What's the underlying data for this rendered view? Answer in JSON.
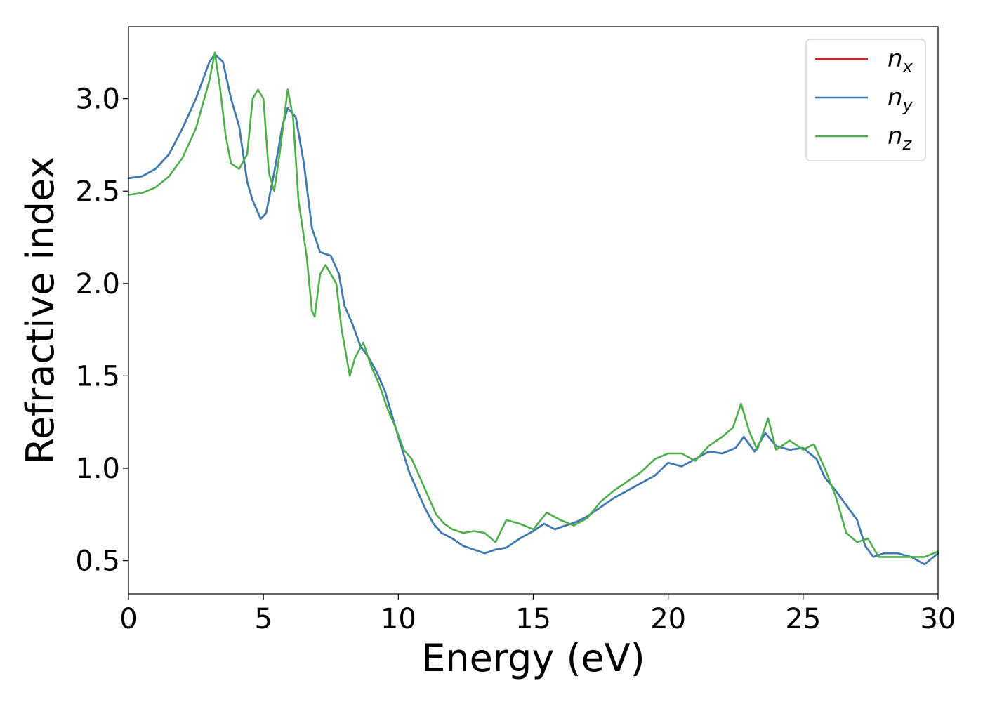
{
  "chart_data": {
    "type": "line",
    "title": "",
    "xlabel": "Energy (eV)",
    "ylabel": "Refractive index",
    "xlim": [
      0,
      30
    ],
    "ylim": [
      0.32,
      3.39
    ],
    "xticks": [
      0,
      5,
      10,
      15,
      20,
      25,
      30
    ],
    "xtick_labels": [
      "0",
      "5",
      "10",
      "15",
      "20",
      "25",
      "30"
    ],
    "yticks": [
      0.5,
      1.0,
      1.5,
      2.0,
      2.5,
      3.0
    ],
    "ytick_labels": [
      "0.5",
      "1.0",
      "1.5",
      "2.0",
      "2.5",
      "3.0"
    ],
    "grid": false,
    "legend_position": "top-right",
    "series": [
      {
        "name": "n",
        "subscript": "x",
        "color": "#e41a1c",
        "x": [
          0,
          0.5,
          1,
          1.5,
          2,
          2.5,
          3,
          3.2,
          3.5,
          3.8,
          4.1,
          4.4,
          4.6,
          4.9,
          5.1,
          5.4,
          5.7,
          5.9,
          6.2,
          6.5,
          6.8,
          7.1,
          7.5,
          7.8,
          8,
          8.3,
          8.6,
          8.9,
          9.2,
          9.5,
          9.8,
          10.1,
          10.4,
          10.7,
          11,
          11.3,
          11.6,
          12,
          12.4,
          12.8,
          13.2,
          13.6,
          14,
          14.5,
          15,
          15.4,
          15.8,
          16.2,
          16.6,
          17,
          17.5,
          18,
          18.5,
          19,
          19.5,
          20,
          20.5,
          21,
          21.5,
          22,
          22.5,
          22.8,
          23.2,
          23.6,
          24,
          24.5,
          25,
          25.5,
          25.8,
          26.2,
          26.6,
          27,
          27.3,
          27.6,
          28,
          28.5,
          29,
          29.5,
          30
        ],
        "y": [
          2.57,
          2.58,
          2.62,
          2.7,
          2.84,
          3.0,
          3.2,
          3.24,
          3.2,
          3.0,
          2.85,
          2.55,
          2.45,
          2.35,
          2.38,
          2.6,
          2.85,
          2.95,
          2.9,
          2.65,
          2.3,
          2.17,
          2.15,
          2.05,
          1.88,
          1.78,
          1.66,
          1.6,
          1.52,
          1.42,
          1.27,
          1.12,
          0.98,
          0.88,
          0.78,
          0.7,
          0.65,
          0.62,
          0.58,
          0.56,
          0.54,
          0.56,
          0.57,
          0.62,
          0.66,
          0.7,
          0.67,
          0.69,
          0.71,
          0.74,
          0.79,
          0.84,
          0.88,
          0.92,
          0.96,
          1.03,
          1.01,
          1.05,
          1.09,
          1.08,
          1.11,
          1.17,
          1.09,
          1.19,
          1.12,
          1.1,
          1.11,
          1.05,
          0.95,
          0.88,
          0.8,
          0.72,
          0.58,
          0.52,
          0.54,
          0.54,
          0.52,
          0.48,
          0.54
        ]
      },
      {
        "name": "n",
        "subscript": "y",
        "color": "#377eb8",
        "x": [
          0,
          0.5,
          1,
          1.5,
          2,
          2.5,
          3,
          3.2,
          3.5,
          3.8,
          4.1,
          4.4,
          4.6,
          4.9,
          5.1,
          5.4,
          5.7,
          5.9,
          6.2,
          6.5,
          6.8,
          7.1,
          7.5,
          7.8,
          8,
          8.3,
          8.6,
          8.9,
          9.2,
          9.5,
          9.8,
          10.1,
          10.4,
          10.7,
          11,
          11.3,
          11.6,
          12,
          12.4,
          12.8,
          13.2,
          13.6,
          14,
          14.5,
          15,
          15.4,
          15.8,
          16.2,
          16.6,
          17,
          17.5,
          18,
          18.5,
          19,
          19.5,
          20,
          20.5,
          21,
          21.5,
          22,
          22.5,
          22.8,
          23.2,
          23.6,
          24,
          24.5,
          25,
          25.5,
          25.8,
          26.2,
          26.6,
          27,
          27.3,
          27.6,
          28,
          28.5,
          29,
          29.5,
          30
        ],
        "y": [
          2.57,
          2.58,
          2.62,
          2.7,
          2.84,
          3.0,
          3.2,
          3.24,
          3.2,
          3.0,
          2.85,
          2.55,
          2.45,
          2.35,
          2.38,
          2.6,
          2.85,
          2.95,
          2.9,
          2.65,
          2.3,
          2.17,
          2.15,
          2.05,
          1.88,
          1.78,
          1.66,
          1.6,
          1.52,
          1.42,
          1.27,
          1.12,
          0.98,
          0.88,
          0.78,
          0.7,
          0.65,
          0.62,
          0.58,
          0.56,
          0.54,
          0.56,
          0.57,
          0.62,
          0.66,
          0.7,
          0.67,
          0.69,
          0.71,
          0.74,
          0.79,
          0.84,
          0.88,
          0.92,
          0.96,
          1.03,
          1.01,
          1.05,
          1.09,
          1.08,
          1.11,
          1.17,
          1.09,
          1.19,
          1.12,
          1.1,
          1.11,
          1.05,
          0.95,
          0.88,
          0.8,
          0.72,
          0.58,
          0.52,
          0.54,
          0.54,
          0.52,
          0.48,
          0.54
        ]
      },
      {
        "name": "n",
        "subscript": "z",
        "color": "#4daf4a",
        "x": [
          0,
          0.5,
          1,
          1.5,
          2,
          2.5,
          3,
          3.2,
          3.4,
          3.6,
          3.8,
          4.1,
          4.4,
          4.6,
          4.8,
          5.0,
          5.2,
          5.4,
          5.6,
          5.9,
          6.1,
          6.3,
          6.6,
          6.8,
          6.9,
          7.1,
          7.3,
          7.5,
          7.7,
          7.9,
          8.2,
          8.4,
          8.7,
          9.0,
          9.3,
          9.6,
          9.9,
          10.2,
          10.5,
          10.8,
          11.1,
          11.4,
          11.7,
          12.0,
          12.4,
          12.8,
          13.2,
          13.6,
          14.0,
          14.5,
          15.0,
          15.5,
          16.0,
          16.5,
          17.0,
          17.5,
          18.0,
          18.5,
          19.0,
          19.5,
          20.0,
          20.5,
          21.0,
          21.5,
          22.0,
          22.4,
          22.7,
          23.0,
          23.3,
          23.7,
          24.0,
          24.5,
          25.0,
          25.4,
          25.8,
          26.2,
          26.6,
          27.0,
          27.4,
          27.8,
          28.2,
          28.6,
          29.0,
          29.5,
          30.0
        ],
        "y": [
          2.48,
          2.49,
          2.52,
          2.58,
          2.68,
          2.84,
          3.1,
          3.25,
          3.05,
          2.8,
          2.65,
          2.62,
          2.7,
          3.0,
          3.05,
          3.0,
          2.6,
          2.5,
          2.7,
          3.05,
          2.9,
          2.45,
          2.15,
          1.85,
          1.82,
          2.05,
          2.1,
          2.05,
          2.0,
          1.75,
          1.5,
          1.6,
          1.68,
          1.55,
          1.45,
          1.32,
          1.22,
          1.1,
          1.05,
          0.95,
          0.85,
          0.75,
          0.7,
          0.67,
          0.65,
          0.66,
          0.65,
          0.6,
          0.72,
          0.7,
          0.67,
          0.76,
          0.72,
          0.69,
          0.73,
          0.82,
          0.88,
          0.93,
          0.98,
          1.05,
          1.08,
          1.08,
          1.04,
          1.12,
          1.17,
          1.22,
          1.35,
          1.2,
          1.1,
          1.27,
          1.1,
          1.15,
          1.1,
          1.13,
          1.0,
          0.85,
          0.65,
          0.6,
          0.62,
          0.52,
          0.52,
          0.52,
          0.52,
          0.52,
          0.55
        ]
      }
    ]
  }
}
